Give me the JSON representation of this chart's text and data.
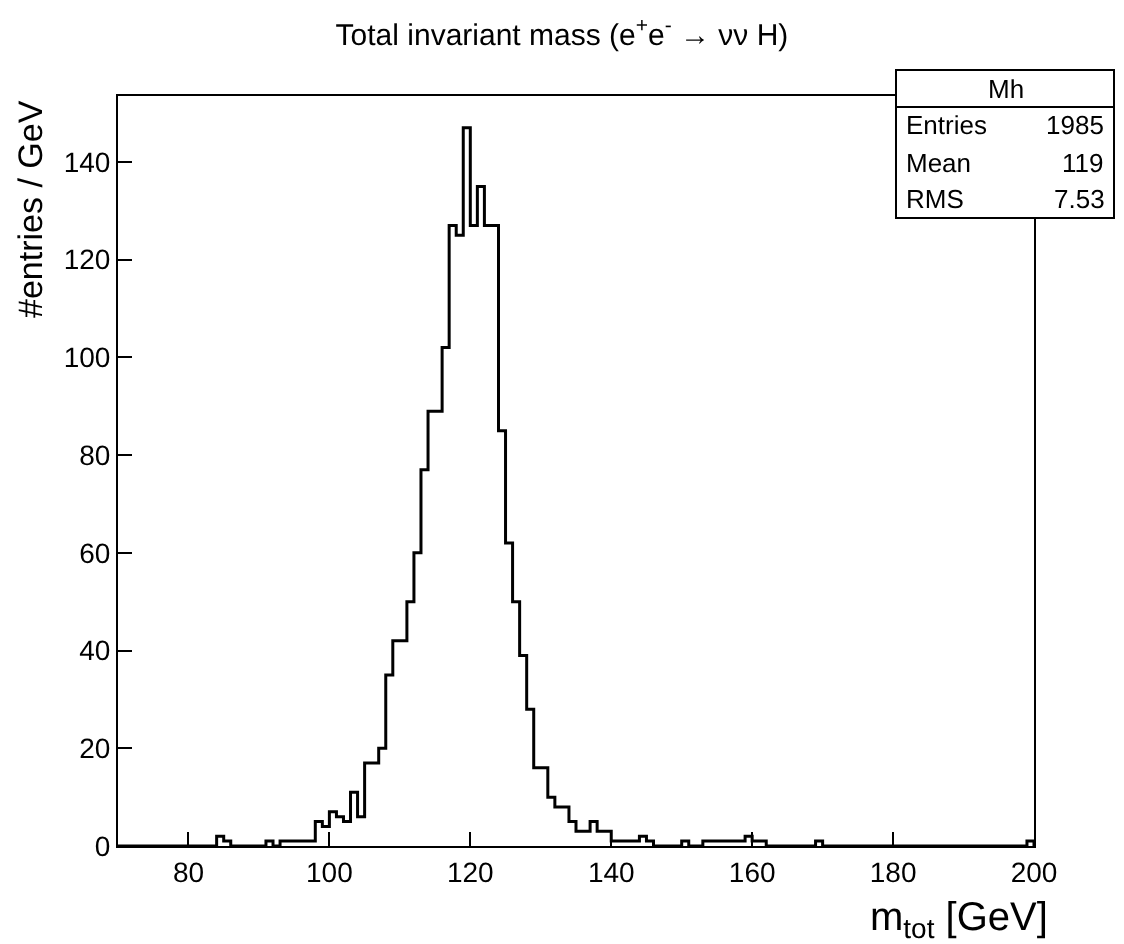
{
  "chart_data": {
    "type": "histogram",
    "title": "Total invariant mass (e$^{+}$e$^{-}$ → νν H)",
    "xlabel": "m$_{tot}$ [GeV]",
    "ylabel": "#entries / GeV",
    "annotations": [
      "Mh",
      "Entries",
      "1985",
      "Mean",
      "119",
      "RMS",
      "7.53"
    ],
    "bins": [
      70,
      71,
      72,
      73,
      74,
      75,
      76,
      77,
      78,
      79,
      80,
      81,
      82,
      83,
      84,
      85,
      86,
      87,
      88,
      89,
      90,
      91,
      92,
      93,
      94,
      95,
      96,
      97,
      98,
      99,
      100,
      101,
      102,
      103,
      104,
      105,
      106,
      107,
      108,
      109,
      110,
      111,
      112,
      113,
      114,
      115,
      116,
      117,
      118,
      119,
      120,
      121,
      122,
      123,
      124,
      125,
      126,
      127,
      128,
      129,
      130,
      131,
      132,
      133,
      134,
      135,
      136,
      137,
      138,
      139,
      140,
      141,
      142,
      143,
      144,
      145,
      146,
      147,
      148,
      149,
      150,
      151,
      152,
      153,
      154,
      155,
      156,
      157,
      158,
      159,
      160,
      161,
      162,
      163,
      164,
      165,
      166,
      167,
      168,
      169,
      170,
      171,
      172,
      173,
      174,
      175,
      176,
      177,
      178,
      179,
      180,
      181,
      182,
      183,
      184,
      185,
      186,
      187,
      188,
      189,
      190,
      191,
      192,
      193,
      194,
      195,
      196,
      197,
      198,
      199,
      200
    ],
    "values": [
      0,
      0,
      0,
      0,
      0,
      0,
      0,
      0,
      0,
      0,
      0,
      0,
      0,
      0,
      2,
      1,
      0,
      0,
      0,
      0,
      0,
      1,
      0,
      1,
      1,
      1,
      1,
      1,
      5,
      4,
      7,
      6,
      5,
      11,
      6,
      17,
      17,
      20,
      35,
      42,
      42,
      50,
      60,
      77,
      89,
      89,
      102,
      127,
      125,
      147,
      127,
      135,
      127,
      127,
      85,
      62,
      50,
      39,
      28,
      16,
      16,
      10,
      8,
      8,
      5,
      3,
      3,
      5,
      3,
      3,
      1,
      1,
      1,
      1,
      2,
      1,
      0,
      0,
      0,
      0,
      1,
      0,
      0,
      1,
      1,
      1,
      1,
      1,
      1,
      2,
      1,
      1,
      0,
      0,
      0,
      0,
      0,
      0,
      0,
      1,
      0,
      0,
      0,
      0,
      0,
      0,
      0,
      0,
      0,
      0,
      0,
      0,
      0,
      0,
      0,
      0,
      0,
      0,
      0,
      0,
      0,
      0,
      0,
      0,
      0,
      0,
      0,
      0,
      0,
      1
    ],
    "color": "#000000",
    "xlim": [
      70,
      200
    ],
    "xticks": [
      80,
      100,
      120,
      140,
      160,
      180,
      200
    ],
    "ylim": [
      0,
      153.5
    ],
    "yticks": [
      0,
      20,
      40,
      60,
      80,
      100,
      120,
      140
    ],
    "grid": false
  }
}
